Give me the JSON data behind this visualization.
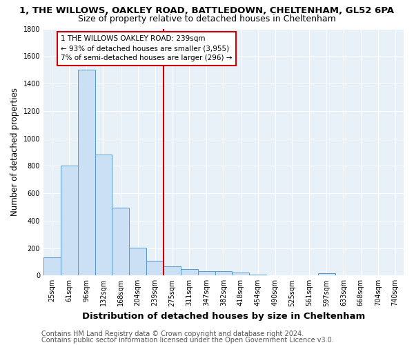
{
  "title1": "1, THE WILLOWS, OAKLEY ROAD, BATTLEDOWN, CHELTENHAM, GL52 6PA",
  "title2": "Size of property relative to detached houses in Cheltenham",
  "xlabel": "Distribution of detached houses by size in Cheltenham",
  "ylabel": "Number of detached properties",
  "footer1": "Contains HM Land Registry data © Crown copyright and database right 2024.",
  "footer2": "Contains public sector information licensed under the Open Government Licence v3.0.",
  "categories": [
    "25sqm",
    "61sqm",
    "96sqm",
    "132sqm",
    "168sqm",
    "204sqm",
    "239sqm",
    "275sqm",
    "311sqm",
    "347sqm",
    "382sqm",
    "418sqm",
    "454sqm",
    "490sqm",
    "525sqm",
    "561sqm",
    "597sqm",
    "633sqm",
    "668sqm",
    "704sqm",
    "740sqm"
  ],
  "values": [
    130,
    800,
    1500,
    880,
    495,
    205,
    105,
    65,
    47,
    30,
    30,
    20,
    5,
    3,
    2,
    2,
    15,
    0,
    0,
    0,
    0
  ],
  "bar_color": "#cce0f5",
  "bar_edge_color": "#5599cc",
  "red_line_index": 6,
  "red_line_color": "#cc0000",
  "annotation_text": "1 THE WILLOWS OAKLEY ROAD: 239sqm\n← 93% of detached houses are smaller (3,955)\n7% of semi-detached houses are larger (296) →",
  "annotation_box_color": "#ffffff",
  "annotation_box_edge": "#cc0000",
  "ylim": [
    0,
    1800
  ],
  "yticks": [
    0,
    200,
    400,
    600,
    800,
    1000,
    1200,
    1400,
    1600,
    1800
  ],
  "bg_color": "#e8f0f8",
  "grid_color": "#ffffff",
  "title1_fontsize": 9.5,
  "title2_fontsize": 9,
  "xlabel_fontsize": 9.5,
  "ylabel_fontsize": 8.5,
  "tick_fontsize": 7,
  "annotation_fontsize": 7.5,
  "footer_fontsize": 7
}
